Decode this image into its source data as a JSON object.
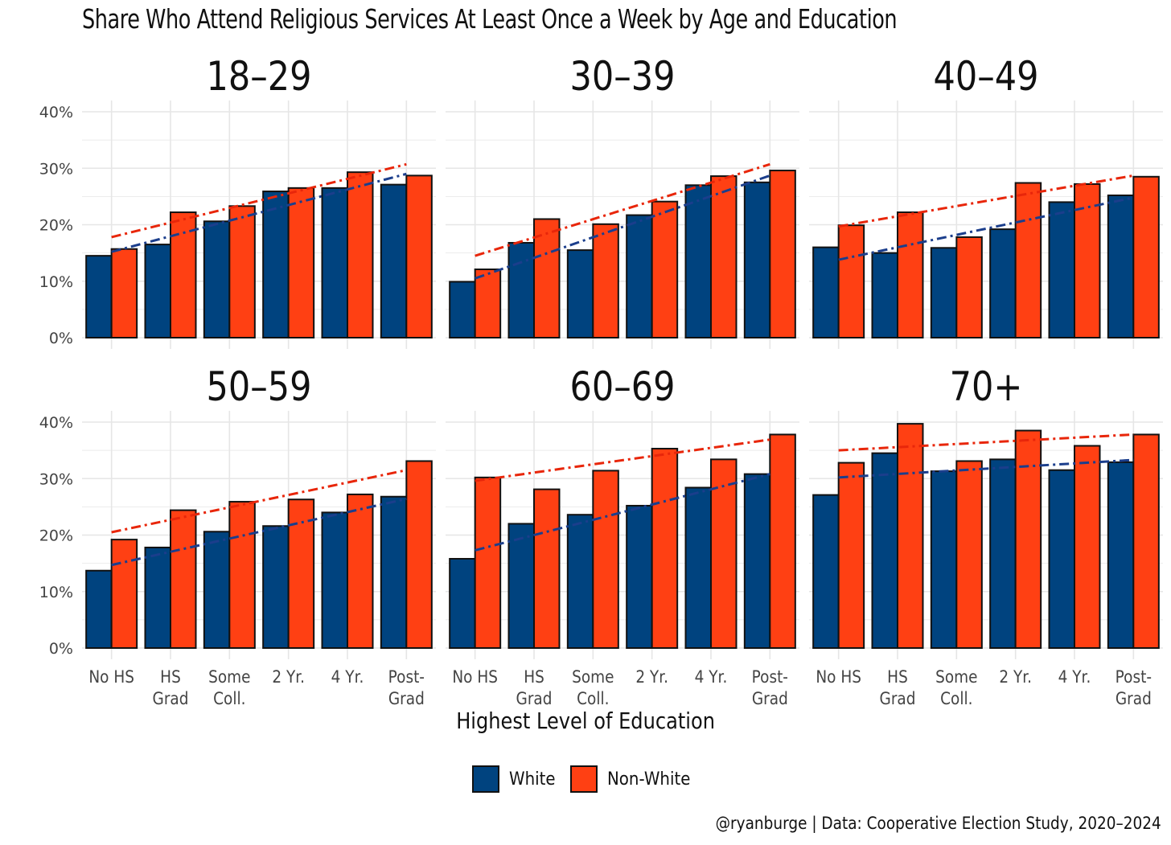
{
  "title": "Share Who Attend Religious Services At Least Once a Week by Age and Education",
  "x_axis_title": "Highest Level of Education",
  "caption": "@ryanburge | Data: Cooperative Election Study, 2020–2024",
  "colors": {
    "white": "#00437F",
    "nonwhite": "#FF4013",
    "white_line": "#1B3E8C",
    "nonwhite_line": "#E8260A",
    "grid": "#E6E6E6"
  },
  "legend": [
    {
      "label": "White",
      "color": "#00437F"
    },
    {
      "label": "Non-White",
      "color": "#FF4013"
    }
  ],
  "chart_data": {
    "type": "bar",
    "facets": [
      "18–29",
      "30–39",
      "40–49",
      "50–59",
      "60–69",
      "70+"
    ],
    "categories": [
      [
        "No HS"
      ],
      [
        "HS",
        "Grad"
      ],
      [
        "Some",
        "Coll."
      ],
      [
        "2 Yr."
      ],
      [
        "4 Yr."
      ],
      [
        "Post-",
        "Grad"
      ]
    ],
    "y_ticks": [
      "0%",
      "10%",
      "20%",
      "30%",
      "40%"
    ],
    "ylim": [
      0,
      40
    ],
    "grid": true,
    "legend_position": "bottom",
    "trend_lines": "dot-dash linear fit per series",
    "panels": [
      {
        "facet": "18–29",
        "series": [
          {
            "name": "White",
            "values": [
              14.5,
              16.5,
              20.6,
              25.9,
              26.5,
              27.1
            ],
            "trend": [
              15.2,
              29.0
            ]
          },
          {
            "name": "Non-White",
            "values": [
              15.7,
              22.2,
              23.3,
              26.5,
              29.3,
              28.7
            ],
            "trend": [
              17.8,
              30.7
            ]
          }
        ]
      },
      {
        "facet": "30–39",
        "series": [
          {
            "name": "White",
            "values": [
              9.9,
              16.8,
              15.5,
              21.7,
              27.0,
              27.5
            ],
            "trend": [
              10.5,
              28.7
            ]
          },
          {
            "name": "Non-White",
            "values": [
              12.1,
              21.0,
              20.1,
              24.1,
              28.6,
              29.6
            ],
            "trend": [
              14.5,
              30.7
            ]
          }
        ]
      },
      {
        "facet": "40–49",
        "series": [
          {
            "name": "White",
            "values": [
              16.0,
              15.0,
              15.9,
              19.2,
              24.0,
              25.2
            ],
            "trend": [
              13.8,
              24.8
            ]
          },
          {
            "name": "Non-White",
            "values": [
              19.9,
              22.2,
              17.8,
              27.4,
              27.2,
              28.5
            ],
            "trend": [
              19.7,
              28.7
            ]
          }
        ]
      },
      {
        "facet": "50–59",
        "series": [
          {
            "name": "White",
            "values": [
              13.7,
              17.8,
              20.6,
              21.6,
              24.0,
              26.8
            ],
            "trend": [
              14.7,
              26.4
            ]
          },
          {
            "name": "Non-White",
            "values": [
              19.2,
              24.4,
              25.9,
              26.3,
              27.2,
              33.1
            ],
            "trend": [
              20.5,
              31.5
            ]
          }
        ]
      },
      {
        "facet": "60–69",
        "series": [
          {
            "name": "White",
            "values": [
              15.8,
              22.0,
              23.6,
              25.2,
              28.4,
              30.8
            ],
            "trend": [
              17.3,
              30.8
            ]
          },
          {
            "name": "Non-White",
            "values": [
              30.2,
              28.1,
              31.4,
              35.3,
              33.4,
              37.8
            ],
            "trend": [
              29.6,
              36.9
            ]
          }
        ]
      },
      {
        "facet": "70+",
        "series": [
          {
            "name": "White",
            "values": [
              27.1,
              34.5,
              31.3,
              33.4,
              31.5,
              32.9
            ],
            "trend": [
              30.2,
              33.3
            ]
          },
          {
            "name": "Non-White",
            "values": [
              32.8,
              39.7,
              33.1,
              38.5,
              35.8,
              37.8
            ],
            "trend": [
              35.0,
              37.8
            ]
          }
        ]
      }
    ]
  }
}
